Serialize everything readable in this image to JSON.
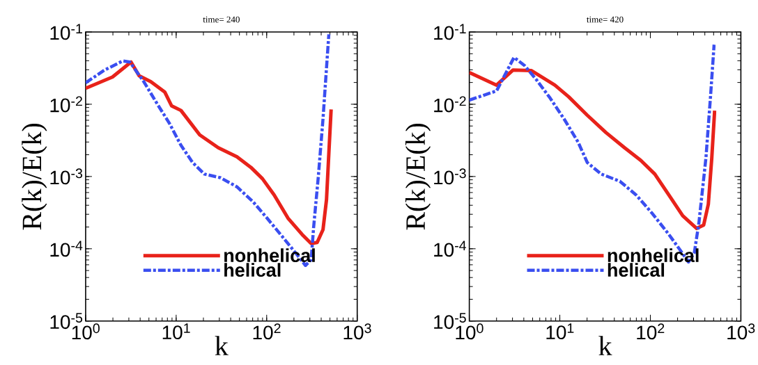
{
  "chart_data": [
    {
      "type": "line",
      "title": "time= 240",
      "xlabel": "k",
      "ylabel": "R(k)/E(k)",
      "log": "xy",
      "legend": "bottom",
      "xlim": [
        1,
        1000
      ],
      "ylim": [
        1e-05,
        0.1
      ],
      "xticks": [
        {
          "value": 1,
          "label": "10$^{0}$"
        },
        {
          "value": 10,
          "label": "10$^{1}$"
        },
        {
          "value": 100,
          "label": "10$^{2}$"
        },
        {
          "value": 1000,
          "label": "10$^{3}$"
        }
      ],
      "yticks": [
        {
          "value": 1e-05,
          "label": "10$^{-5}$"
        },
        {
          "value": 0.0001,
          "label": "10$^{-4}$"
        },
        {
          "value": 0.001,
          "label": "10$^{-3}$"
        },
        {
          "value": 0.01,
          "label": "10$^{-2}$"
        },
        {
          "value": 0.1,
          "label": "10$^{-1}$"
        }
      ],
      "series": [
        {
          "name": "nonhelical",
          "color": "#e8221a",
          "line_style": "solid",
          "x": [
            1,
            1.98,
            3.17,
            3.9,
            5.25,
            7.5,
            8.9,
            11.3,
            18.2,
            29.2,
            46.9,
            66.8,
            89.9,
            121,
            172,
            246,
            310,
            361,
            419,
            458,
            486,
            515
          ],
          "values": [
            0.0166,
            0.0238,
            0.0384,
            0.0247,
            0.0205,
            0.0147,
            0.0095,
            0.0082,
            0.00377,
            0.0025,
            0.00187,
            0.00134,
            0.00093,
            0.000555,
            0.000265,
            0.000158,
            0.000118,
            0.000122,
            0.000184,
            0.000479,
            0.00209,
            0.0085
          ]
        },
        {
          "name": "helical",
          "color": "#3a4ef0",
          "line_style": "dashdot",
          "x": [
            1,
            1.61,
            2.58,
            3.08,
            4.39,
            6.27,
            8.42,
            11.3,
            15.2,
            20.5,
            31,
            46.9,
            71,
            101,
            149,
            218,
            268,
            310,
            330,
            372,
            419,
            458,
            486
          ],
          "values": [
            0.0198,
            0.0296,
            0.0398,
            0.0384,
            0.0205,
            0.0098,
            0.00545,
            0.0027,
            0.00156,
            0.00108,
            0.00096,
            0.00072,
            0.000445,
            0.000265,
            0.000147,
            8.17e-05,
            5.86e-05,
            7.05e-05,
            0.000198,
            0.001,
            0.0063,
            0.0319,
            0.0929
          ]
        }
      ]
    },
    {
      "type": "line",
      "title": "time= 420",
      "xlabel": "k",
      "ylabel": "R(k)/E(k)",
      "log": "xy",
      "legend": "bottom",
      "xlim": [
        1,
        1000
      ],
      "ylim": [
        1e-05,
        0.1
      ],
      "xticks": [
        {
          "value": 1,
          "label": "10$^{0}$"
        },
        {
          "value": 10,
          "label": "10$^{1}$"
        },
        {
          "value": 100,
          "label": "10$^{2}$"
        },
        {
          "value": 1000,
          "label": "10$^{3}$"
        }
      ],
      "yticks": [
        {
          "value": 1e-05,
          "label": "10$^{-5}$"
        },
        {
          "value": 0.0001,
          "label": "10$^{-4}$"
        },
        {
          "value": 0.001,
          "label": "10$^{-3}$"
        },
        {
          "value": 0.01,
          "label": "10$^{-2}$"
        },
        {
          "value": 0.1,
          "label": "10$^{-1}$"
        }
      ],
      "series": [
        {
          "name": "nonhelical",
          "color": "#e8221a",
          "line_style": "solid",
          "x": [
            1,
            2.0,
            3.03,
            4.86,
            8.8,
            12.5,
            20.1,
            32.3,
            51.9,
            78.5,
            112,
            160,
            228,
            325,
            388,
            437,
            477,
            513
          ],
          "values": [
            0.0275,
            0.0184,
            0.0297,
            0.0292,
            0.0184,
            0.0127,
            0.00705,
            0.00406,
            0.0025,
            0.00167,
            0.00108,
            0.000555,
            0.000286,
            0.000191,
            0.000213,
            0.000413,
            0.0018,
            0.00817
          ]
        },
        {
          "name": "helical",
          "color": "#3a4ef0",
          "line_style": "dashdot",
          "x": [
            1,
            2.0,
            3.12,
            4.07,
            5.47,
            7.8,
            11.1,
            15.9,
            20.1,
            28.7,
            46,
            69.7,
            105,
            160,
            215,
            264,
            306,
            344,
            411,
            463,
            506
          ],
          "values": [
            0.0114,
            0.0153,
            0.0445,
            0.0344,
            0.0221,
            0.0122,
            0.0063,
            0.003,
            0.00156,
            0.00108,
            0.00086,
            0.000555,
            0.000308,
            0.000158,
            9.46e-05,
            6.55e-05,
            8.79e-05,
            0.000229,
            0.0018,
            0.0132,
            0.0667
          ]
        }
      ]
    }
  ]
}
